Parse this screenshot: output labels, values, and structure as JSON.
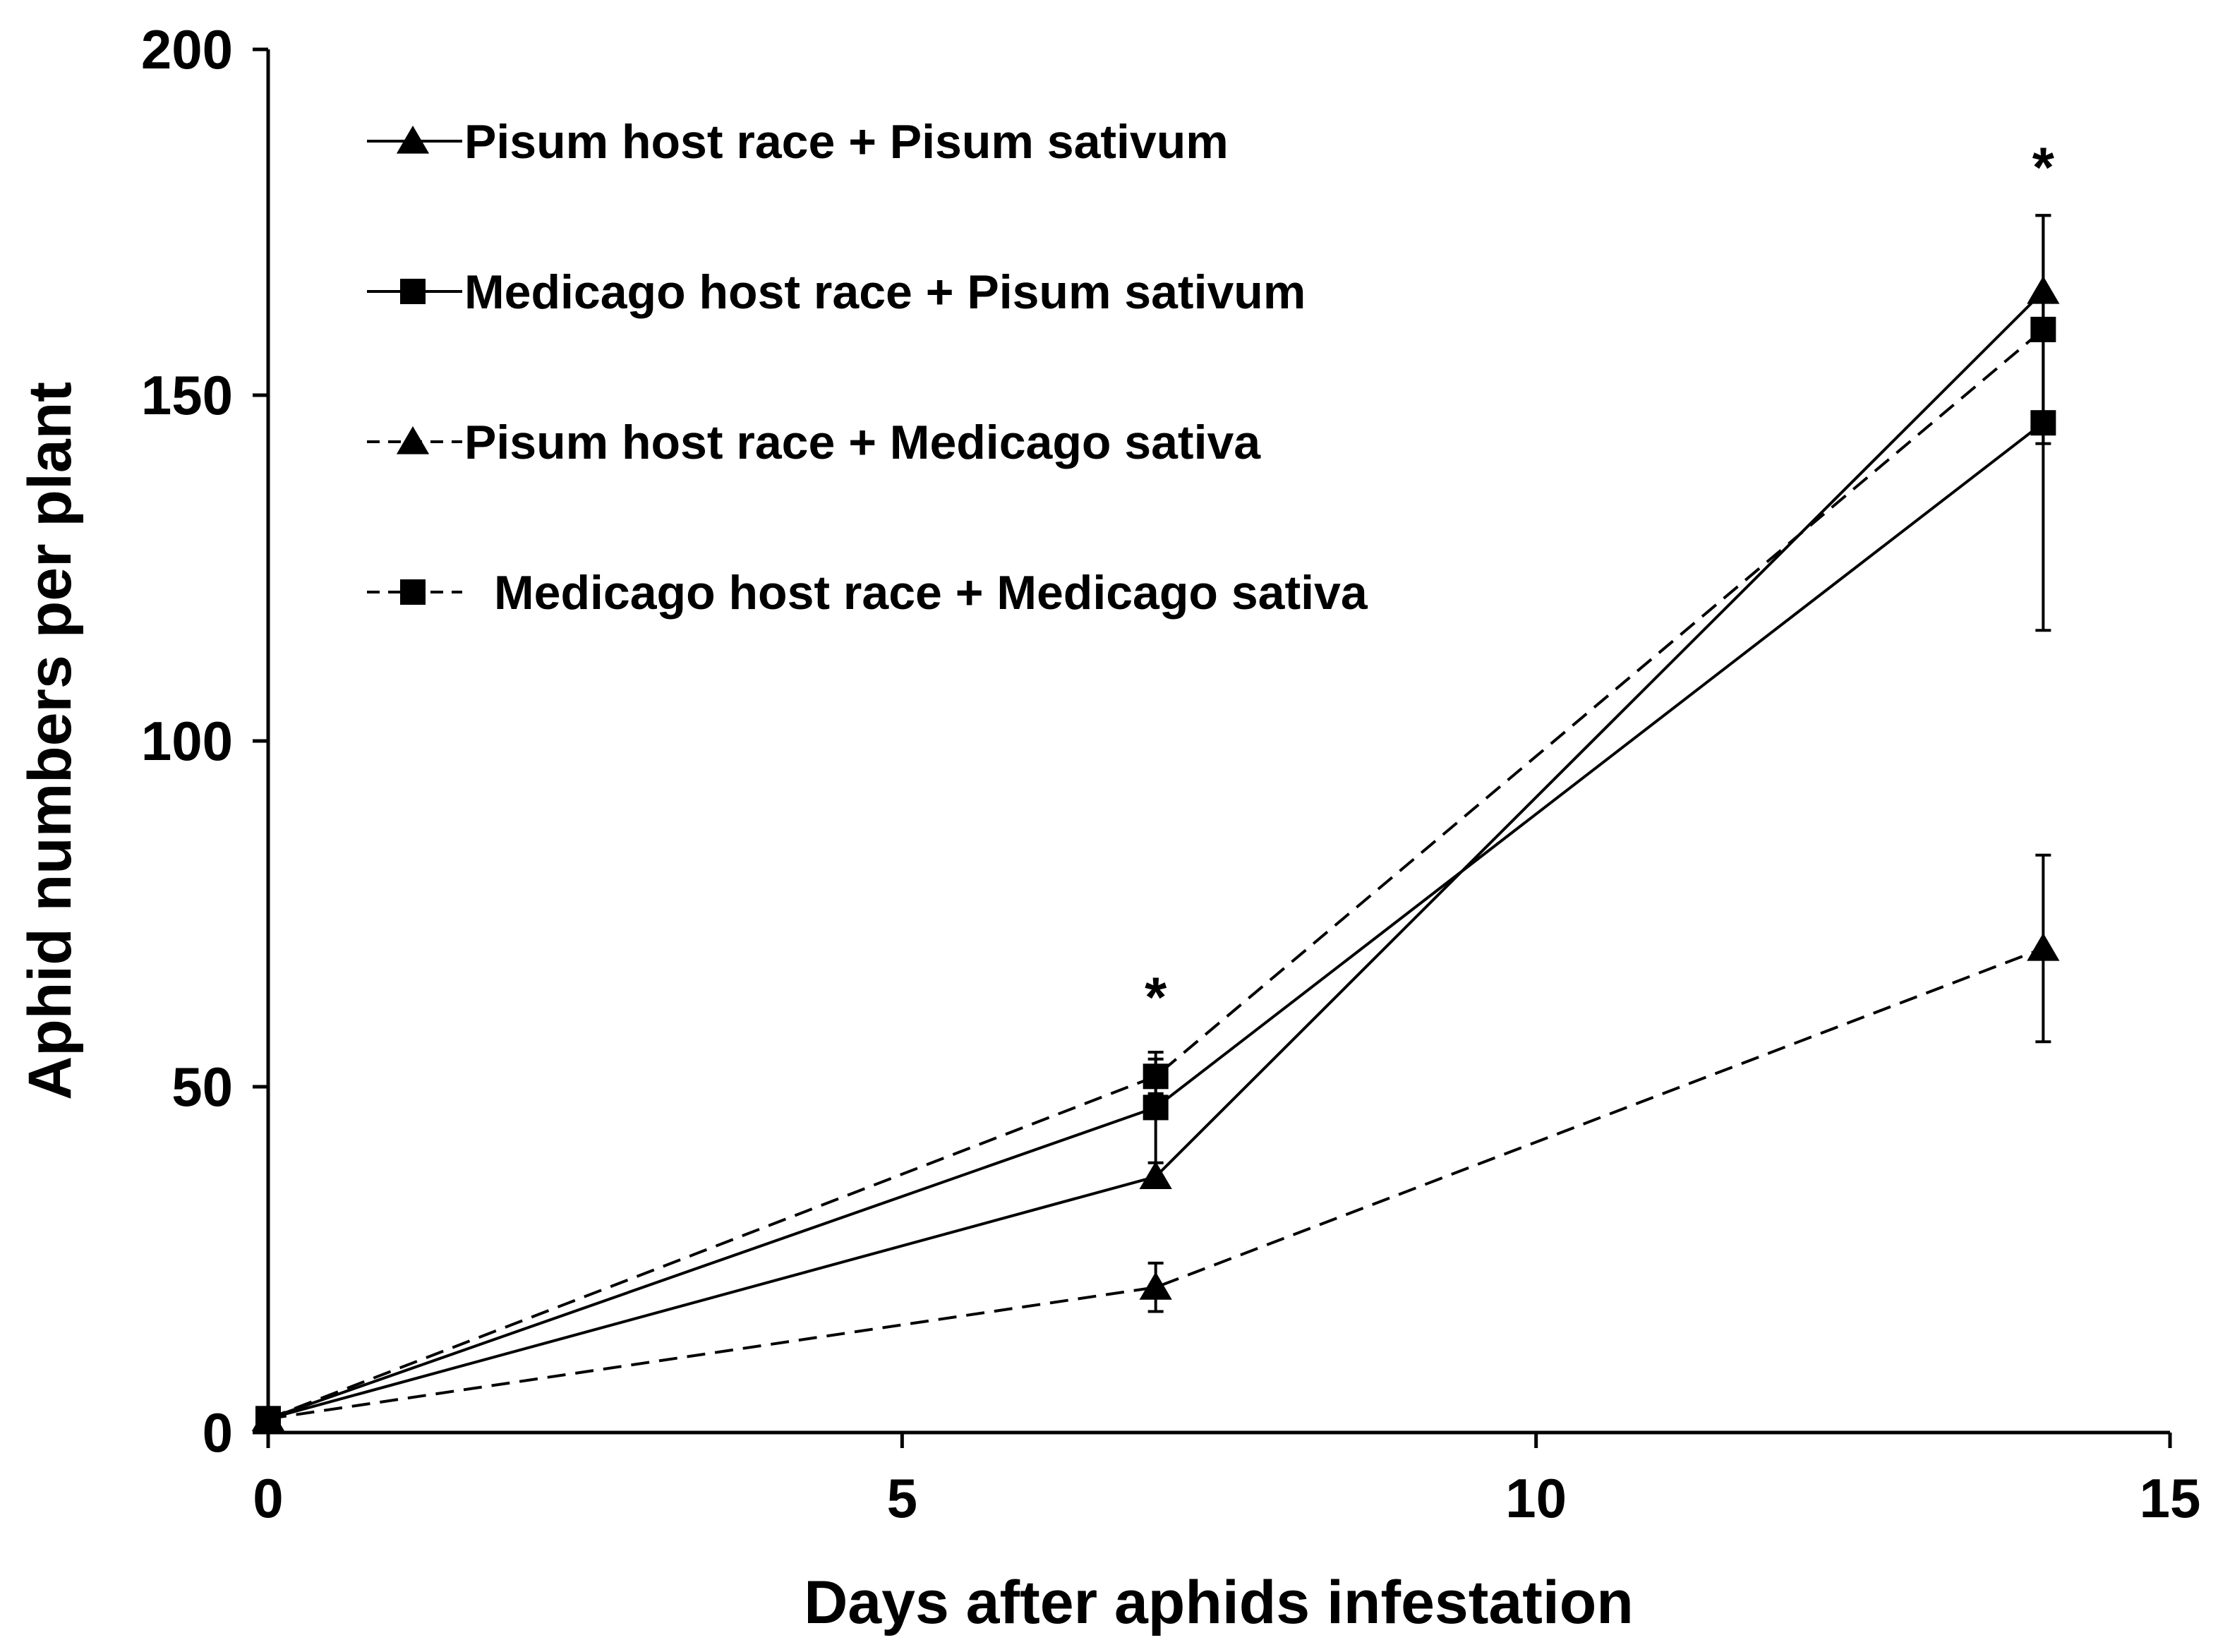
{
  "chart_data": {
    "type": "line",
    "title": "",
    "xlabel": "Days after aphids infestation",
    "ylabel": "Aphid numbers per plant",
    "xlim": [
      0,
      15
    ],
    "ylim": [
      0,
      200
    ],
    "x_ticks": [
      "0",
      "5",
      "10",
      "15"
    ],
    "y_ticks": [
      "0",
      "50",
      "100",
      "150",
      "200"
    ],
    "grid": false,
    "legend_position": "top-left",
    "series": [
      {
        "name": "Pisum host race + Pisum sativum",
        "marker": "triangle",
        "line_style": "solid",
        "x": [
          0,
          7,
          14
        ],
        "y": [
          2,
          37,
          165
        ],
        "error": [
          0,
          0,
          0
        ]
      },
      {
        "name": "Medicago host race + Pisum sativum",
        "marker": "square",
        "line_style": "solid",
        "x": [
          0,
          7,
          14
        ],
        "y": [
          2,
          47,
          146
        ],
        "error": [
          0,
          8,
          30
        ]
      },
      {
        "name": "Pisum host race + Medicago sativa",
        "marker": "triangle",
        "line_style": "dashed",
        "x": [
          0,
          7,
          14
        ],
        "y": [
          2,
          21,
          70
        ],
        "error": [
          0,
          3.5,
          13.5
        ]
      },
      {
        "name": "Medicago host race + Medicago sativa",
        "marker": "square",
        "line_style": "dashed",
        "x": [
          0,
          7,
          14
        ],
        "y": [
          2,
          51.5,
          159.5
        ],
        "error": [
          0,
          2.5,
          16.5
        ]
      }
    ],
    "annotations": [
      {
        "text": "*",
        "x": 7,
        "y": 63
      },
      {
        "text": "*",
        "x": 14,
        "y": 183
      }
    ]
  }
}
